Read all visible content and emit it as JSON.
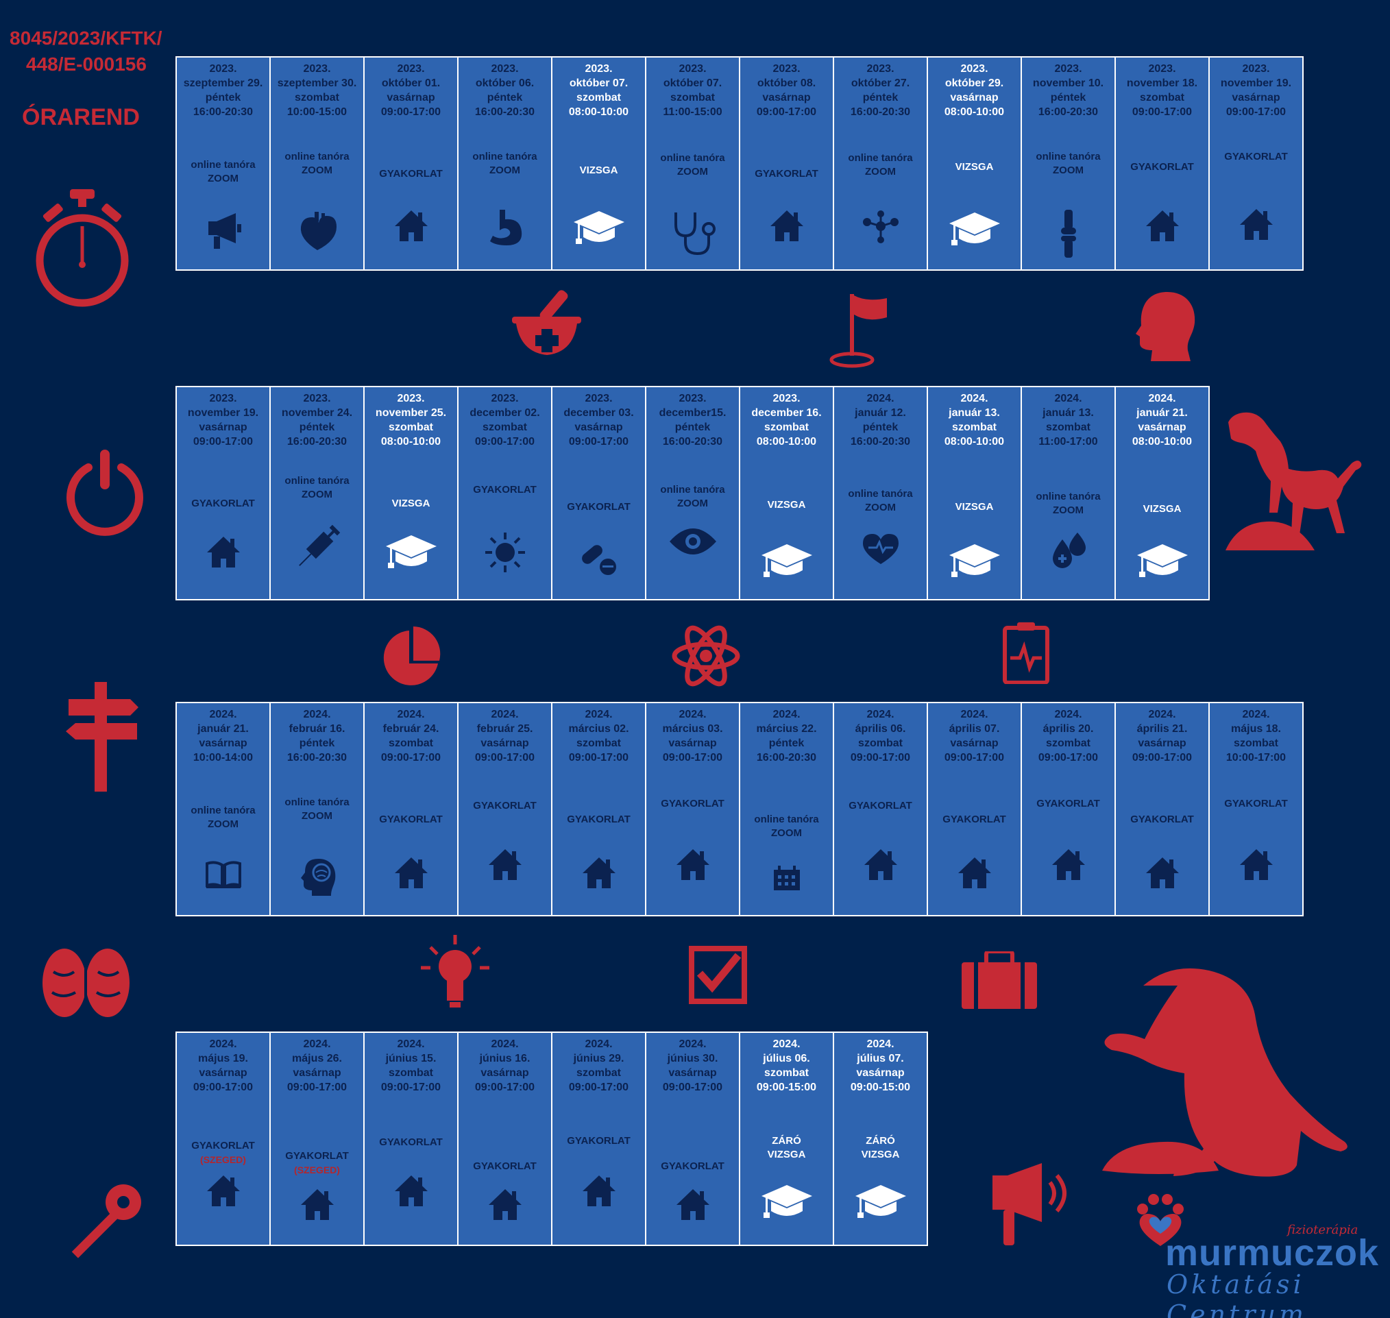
{
  "header": {
    "code_line1": "8045/2023/KFTK/",
    "code_line2": "448/E-000156",
    "title": "ÓRAREND"
  },
  "colors": {
    "background": "#00204a",
    "cell": "#2e64b0",
    "accent_red": "#c62a35",
    "text_dark": "#0b2250",
    "text_exam": "#ffffff"
  },
  "rows": [
    {
      "sessions": [
        {
          "year": "2023.",
          "date": "szeptember 29.",
          "day": "péntek",
          "time": "16:00-20:30",
          "activity": [
            "online tanóra",
            "ZOOM"
          ],
          "icon": "megaphone-icon",
          "exam": false
        },
        {
          "year": "2023.",
          "date": "szeptember 30.",
          "day": "szombat",
          "time": "10:00-15:00",
          "activity": [
            "online tanóra",
            "ZOOM"
          ],
          "icon": "heart-organ-icon",
          "exam": false
        },
        {
          "year": "2023.",
          "date": "október 01.",
          "day": "vasárnap",
          "time": "09:00-17:00",
          "activity": [
            "GYAKORLAT"
          ],
          "icon": "house-icon",
          "exam": false
        },
        {
          "year": "2023.",
          "date": "október 06.",
          "day": "péntek",
          "time": "16:00-20:30",
          "activity": [
            "online tanóra",
            "ZOOM"
          ],
          "icon": "stomach-icon",
          "exam": false
        },
        {
          "year": "2023.",
          "date": "október 07.",
          "day": "szombat",
          "time": "08:00-10:00",
          "activity": [
            "VIZSGA"
          ],
          "icon": "graduation-cap-icon",
          "exam": true
        },
        {
          "year": "2023.",
          "date": "október 07.",
          "day": "szombat",
          "time": "11:00-15:00",
          "activity": [
            "online tanóra",
            "ZOOM"
          ],
          "icon": "stethoscope-icon",
          "exam": false
        },
        {
          "year": "2023.",
          "date": "október 08.",
          "day": "vasárnap",
          "time": "09:00-17:00",
          "activity": [
            "GYAKORLAT"
          ],
          "icon": "house-icon",
          "exam": false
        },
        {
          "year": "2023.",
          "date": "október 27.",
          "day": "péntek",
          "time": "16:00-20:30",
          "activity": [
            "online tanóra",
            "ZOOM"
          ],
          "icon": "molecule-icon",
          "exam": false
        },
        {
          "year": "2023.",
          "date": "október 29.",
          "day": "vasárnap",
          "time": "08:00-10:00",
          "activity": [
            "VIZSGA"
          ],
          "icon": "graduation-cap-icon",
          "exam": true
        },
        {
          "year": "2023.",
          "date": "november 10.",
          "day": "péntek",
          "time": "16:00-20:30",
          "activity": [
            "online tanóra",
            "ZOOM"
          ],
          "icon": "knee-joint-icon",
          "exam": false
        },
        {
          "year": "2023.",
          "date": "november 18.",
          "day": "szombat",
          "time": "09:00-17:00",
          "activity": [
            "GYAKORLAT"
          ],
          "icon": "house-icon",
          "exam": false
        },
        {
          "year": "2023.",
          "date": "november 19.",
          "day": "vasárnap",
          "time": "09:00-17:00",
          "activity": [
            "GYAKORLAT"
          ],
          "icon": "house-icon",
          "exam": false
        }
      ]
    },
    {
      "sessions": [
        {
          "year": "2023.",
          "date": "november 19.",
          "day": "vasárnap",
          "time": "09:00-17:00",
          "activity": [
            "GYAKORLAT"
          ],
          "icon": "house-icon",
          "exam": false
        },
        {
          "year": "2023.",
          "date": "november 24.",
          "day": "péntek",
          "time": "16:00-20:30",
          "activity": [
            "online tanóra",
            "ZOOM"
          ],
          "icon": "syringe-icon",
          "exam": false
        },
        {
          "year": "2023.",
          "date": "november 25.",
          "day": "szombat",
          "time": "08:00-10:00",
          "activity": [
            "VIZSGA"
          ],
          "icon": "graduation-cap-icon",
          "exam": true
        },
        {
          "year": "2023.",
          "date": "december 02.",
          "day": "szombat",
          "time": "09:00-17:00",
          "activity": [
            "GYAKORLAT"
          ],
          "icon": "sun-icon",
          "exam": false
        },
        {
          "year": "2023.",
          "date": "december 03.",
          "day": "vasárnap",
          "time": "09:00-17:00",
          "activity": [
            "GYAKORLAT"
          ],
          "icon": "pills-icon",
          "exam": false
        },
        {
          "year": "2023.",
          "date": "december15.",
          "day": "péntek",
          "time": "16:00-20:30",
          "activity": [
            "online tanóra",
            "ZOOM"
          ],
          "icon": "eye-icon",
          "exam": false
        },
        {
          "year": "2023.",
          "date": "december 16.",
          "day": "szombat",
          "time": "08:00-10:00",
          "activity": [
            "VIZSGA"
          ],
          "icon": "graduation-cap-icon",
          "exam": true
        },
        {
          "year": "2024.",
          "date": "január 12.",
          "day": "péntek",
          "time": "16:00-20:30",
          "activity": [
            "online tanóra",
            "ZOOM"
          ],
          "icon": "heartbeat-icon",
          "exam": false
        },
        {
          "year": "2024.",
          "date": "január 13.",
          "day": "szombat",
          "time": "08:00-10:00",
          "activity": [
            "VIZSGA"
          ],
          "icon": "graduation-cap-icon",
          "exam": true
        },
        {
          "year": "2024.",
          "date": "január 13.",
          "day": "szombat",
          "time": "11:00-17:00",
          "activity": [
            "online tanóra",
            "ZOOM"
          ],
          "icon": "blood-drops-icon",
          "exam": false
        },
        {
          "year": "2024.",
          "date": "január 21.",
          "day": "vasárnap",
          "time": "08:00-10:00",
          "activity": [
            "VIZSGA"
          ],
          "icon": "graduation-cap-icon",
          "exam": true
        }
      ]
    },
    {
      "sessions": [
        {
          "year": "2024.",
          "date": "január 21.",
          "day": "vasárnap",
          "time": "10:00-14:00",
          "activity": [
            "online tanóra",
            "ZOOM"
          ],
          "icon": "book-icon",
          "exam": false
        },
        {
          "year": "2024.",
          "date": "február 16.",
          "day": "péntek",
          "time": "16:00-20:30",
          "activity": [
            "online tanóra",
            "ZOOM"
          ],
          "icon": "head-brain-icon",
          "exam": false
        },
        {
          "year": "2024.",
          "date": "február 24.",
          "day": "szombat",
          "time": "09:00-17:00",
          "activity": [
            "GYAKORLAT"
          ],
          "icon": "house-icon",
          "exam": false
        },
        {
          "year": "2024.",
          "date": "február 25.",
          "day": "vasárnap",
          "time": "09:00-17:00",
          "activity": [
            "GYAKORLAT"
          ],
          "icon": "house-icon",
          "exam": false
        },
        {
          "year": "2024.",
          "date": "március 02.",
          "day": "szombat",
          "time": "09:00-17:00",
          "activity": [
            "GYAKORLAT"
          ],
          "icon": "house-icon",
          "exam": false
        },
        {
          "year": "2024.",
          "date": "március 03.",
          "day": "vasárnap",
          "time": "09:00-17:00",
          "activity": [
            "GYAKORLAT"
          ],
          "icon": "house-icon",
          "exam": false
        },
        {
          "year": "2024.",
          "date": "március 22.",
          "day": "péntek",
          "time": "16:00-20:30",
          "activity": [
            "online tanóra",
            "ZOOM"
          ],
          "icon": "calendar-icon",
          "exam": false
        },
        {
          "year": "2024.",
          "date": "április 06.",
          "day": "szombat",
          "time": "09:00-17:00",
          "activity": [
            "GYAKORLAT"
          ],
          "icon": "house-icon",
          "exam": false
        },
        {
          "year": "2024.",
          "date": "április 07.",
          "day": "vasárnap",
          "time": "09:00-17:00",
          "activity": [
            "GYAKORLAT"
          ],
          "icon": "house-icon",
          "exam": false
        },
        {
          "year": "2024.",
          "date": "április 20.",
          "day": "szombat",
          "time": "09:00-17:00",
          "activity": [
            "GYAKORLAT"
          ],
          "icon": "house-icon",
          "exam": false
        },
        {
          "year": "2024.",
          "date": "április 21.",
          "day": "vasárnap",
          "time": "09:00-17:00",
          "activity": [
            "GYAKORLAT"
          ],
          "icon": "house-icon",
          "exam": false
        },
        {
          "year": "2024.",
          "date": "május 18.",
          "day": "szombat",
          "time": "10:00-17:00",
          "activity": [
            "GYAKORLAT"
          ],
          "icon": "house-icon",
          "exam": false
        }
      ]
    },
    {
      "sessions": [
        {
          "year": "2024.",
          "date": "május 19.",
          "day": "vasárnap",
          "time": "09:00-17:00",
          "activity": [
            "GYAKORLAT"
          ],
          "note": "(SZEGED)",
          "icon": "house-icon",
          "exam": false
        },
        {
          "year": "2024.",
          "date": "május 26.",
          "day": "vasárnap",
          "time": "09:00-17:00",
          "activity": [
            "GYAKORLAT"
          ],
          "note": "(SZEGED)",
          "icon": "house-icon",
          "exam": false
        },
        {
          "year": "2024.",
          "date": "június 15.",
          "day": "szombat",
          "time": "09:00-17:00",
          "activity": [
            "GYAKORLAT"
          ],
          "icon": "house-icon",
          "exam": false
        },
        {
          "year": "2024.",
          "date": "június 16.",
          "day": "vasárnap",
          "time": "09:00-17:00",
          "activity": [
            "GYAKORLAT"
          ],
          "icon": "house-icon",
          "exam": false
        },
        {
          "year": "2024.",
          "date": "június 29.",
          "day": "szombat",
          "time": "09:00-17:00",
          "activity": [
            "GYAKORLAT"
          ],
          "icon": "house-icon",
          "exam": false
        },
        {
          "year": "2024.",
          "date": "június 30.",
          "day": "vasárnap",
          "time": "09:00-17:00",
          "activity": [
            "GYAKORLAT"
          ],
          "icon": "house-icon",
          "exam": false
        },
        {
          "year": "2024.",
          "date": "július 06.",
          "day": "szombat",
          "time": "09:00-15:00",
          "activity": [
            "ZÁRÓ",
            "VIZSGA"
          ],
          "icon": "graduation-cap-icon",
          "exam": true
        },
        {
          "year": "2024.",
          "date": "július 07.",
          "day": "vasárnap",
          "time": "09:00-15:00",
          "activity": [
            "ZÁRÓ",
            "VIZSGA"
          ],
          "icon": "graduation-cap-icon",
          "exam": true
        }
      ]
    }
  ],
  "decorations": [
    "stopwatch-icon",
    "power-icon",
    "signpost-icon",
    "brain-icon",
    "key-icon",
    "mortar-pestle-icon",
    "flag-icon",
    "human-head-icon",
    "dog-on-rock-icon",
    "pie-chart-icon",
    "atom-icon",
    "ecg-monitor-icon",
    "lightbulb-icon",
    "checkbox-icon",
    "suitcase-icon",
    "sitting-dog-icon",
    "megaphone-icon",
    "paw-heart-icon"
  ],
  "logo": {
    "small": "fizioterápia",
    "brand": "murmuczok",
    "sub": "Oktatási Centrum"
  }
}
